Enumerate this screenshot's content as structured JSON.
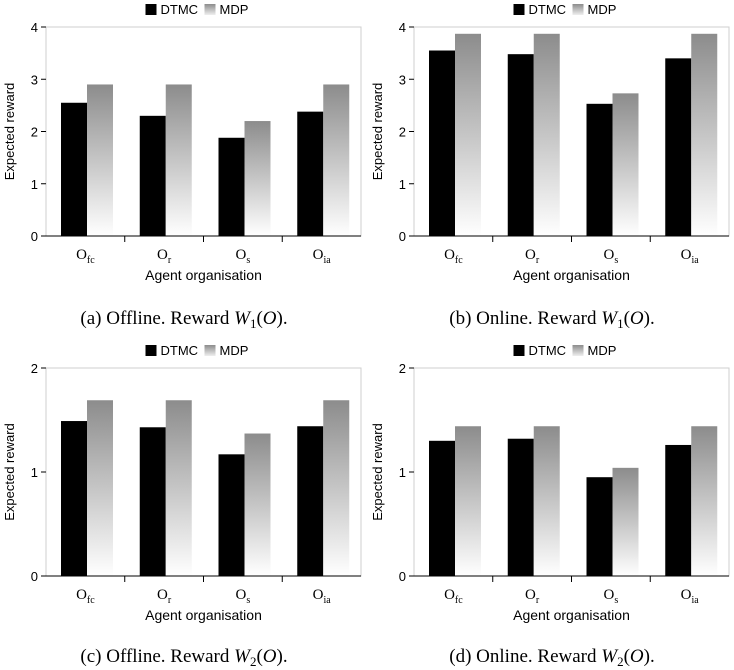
{
  "legend": {
    "dtmc": "DTMC",
    "mdp": "MDP"
  },
  "captions": [
    {
      "prefix": "(a) Offline. Reward",
      "sub": "1"
    },
    {
      "prefix": "(b) Online. Reward",
      "sub": "1"
    },
    {
      "prefix": "(c) Offline. Reward",
      "sub": "2"
    },
    {
      "prefix": "(d) Online. Reward",
      "sub": "2"
    }
  ],
  "caption_math": {
    "w": "W",
    "o": "O"
  },
  "colors": {
    "dtmc": "#000000",
    "mdp_top": "#8c8c8c",
    "mdp_bottom": "#ffffff"
  },
  "chart_data": [
    {
      "type": "bar",
      "categories": [
        {
          "base": "O",
          "sub": "fc"
        },
        {
          "base": "O",
          "sub": "r"
        },
        {
          "base": "O",
          "sub": "s"
        },
        {
          "base": "O",
          "sub": "ia"
        }
      ],
      "series": [
        {
          "name": "DTMC",
          "values": [
            2.55,
            2.3,
            1.88,
            2.38
          ]
        },
        {
          "name": "MDP",
          "values": [
            2.9,
            2.9,
            2.2,
            2.9
          ]
        }
      ],
      "xlabel": "Agent organisation",
      "ylabel": "Expected reward",
      "ylim": [
        0,
        4
      ],
      "yticks": [
        0,
        1,
        2,
        3,
        4
      ],
      "legend_position": "top"
    },
    {
      "type": "bar",
      "categories": [
        {
          "base": "O",
          "sub": "fc"
        },
        {
          "base": "O",
          "sub": "r"
        },
        {
          "base": "O",
          "sub": "s"
        },
        {
          "base": "O",
          "sub": "ia"
        }
      ],
      "series": [
        {
          "name": "DTMC",
          "values": [
            3.55,
            3.48,
            2.53,
            3.4
          ]
        },
        {
          "name": "MDP",
          "values": [
            3.87,
            3.87,
            2.73,
            3.87
          ]
        }
      ],
      "xlabel": "Agent organisation",
      "ylabel": "Expected reward",
      "ylim": [
        0,
        4
      ],
      "yticks": [
        0,
        1,
        2,
        3,
        4
      ],
      "legend_position": "top"
    },
    {
      "type": "bar",
      "categories": [
        {
          "base": "O",
          "sub": "fc"
        },
        {
          "base": "O",
          "sub": "r"
        },
        {
          "base": "O",
          "sub": "s"
        },
        {
          "base": "O",
          "sub": "ia"
        }
      ],
      "series": [
        {
          "name": "DTMC",
          "values": [
            1.49,
            1.43,
            1.17,
            1.44
          ]
        },
        {
          "name": "MDP",
          "values": [
            1.69,
            1.69,
            1.37,
            1.69
          ]
        }
      ],
      "xlabel": "Agent organisation",
      "ylabel": "Expected reward",
      "ylim": [
        0,
        2
      ],
      "yticks": [
        0,
        1,
        2
      ],
      "legend_position": "top"
    },
    {
      "type": "bar",
      "categories": [
        {
          "base": "O",
          "sub": "fc"
        },
        {
          "base": "O",
          "sub": "r"
        },
        {
          "base": "O",
          "sub": "s"
        },
        {
          "base": "O",
          "sub": "ia"
        }
      ],
      "series": [
        {
          "name": "DTMC",
          "values": [
            1.3,
            1.32,
            0.95,
            1.26
          ]
        },
        {
          "name": "MDP",
          "values": [
            1.44,
            1.44,
            1.04,
            1.44
          ]
        }
      ],
      "xlabel": "Agent organisation",
      "ylabel": "Expected reward",
      "ylim": [
        0,
        2
      ],
      "yticks": [
        0,
        1,
        2
      ],
      "legend_position": "top"
    }
  ]
}
